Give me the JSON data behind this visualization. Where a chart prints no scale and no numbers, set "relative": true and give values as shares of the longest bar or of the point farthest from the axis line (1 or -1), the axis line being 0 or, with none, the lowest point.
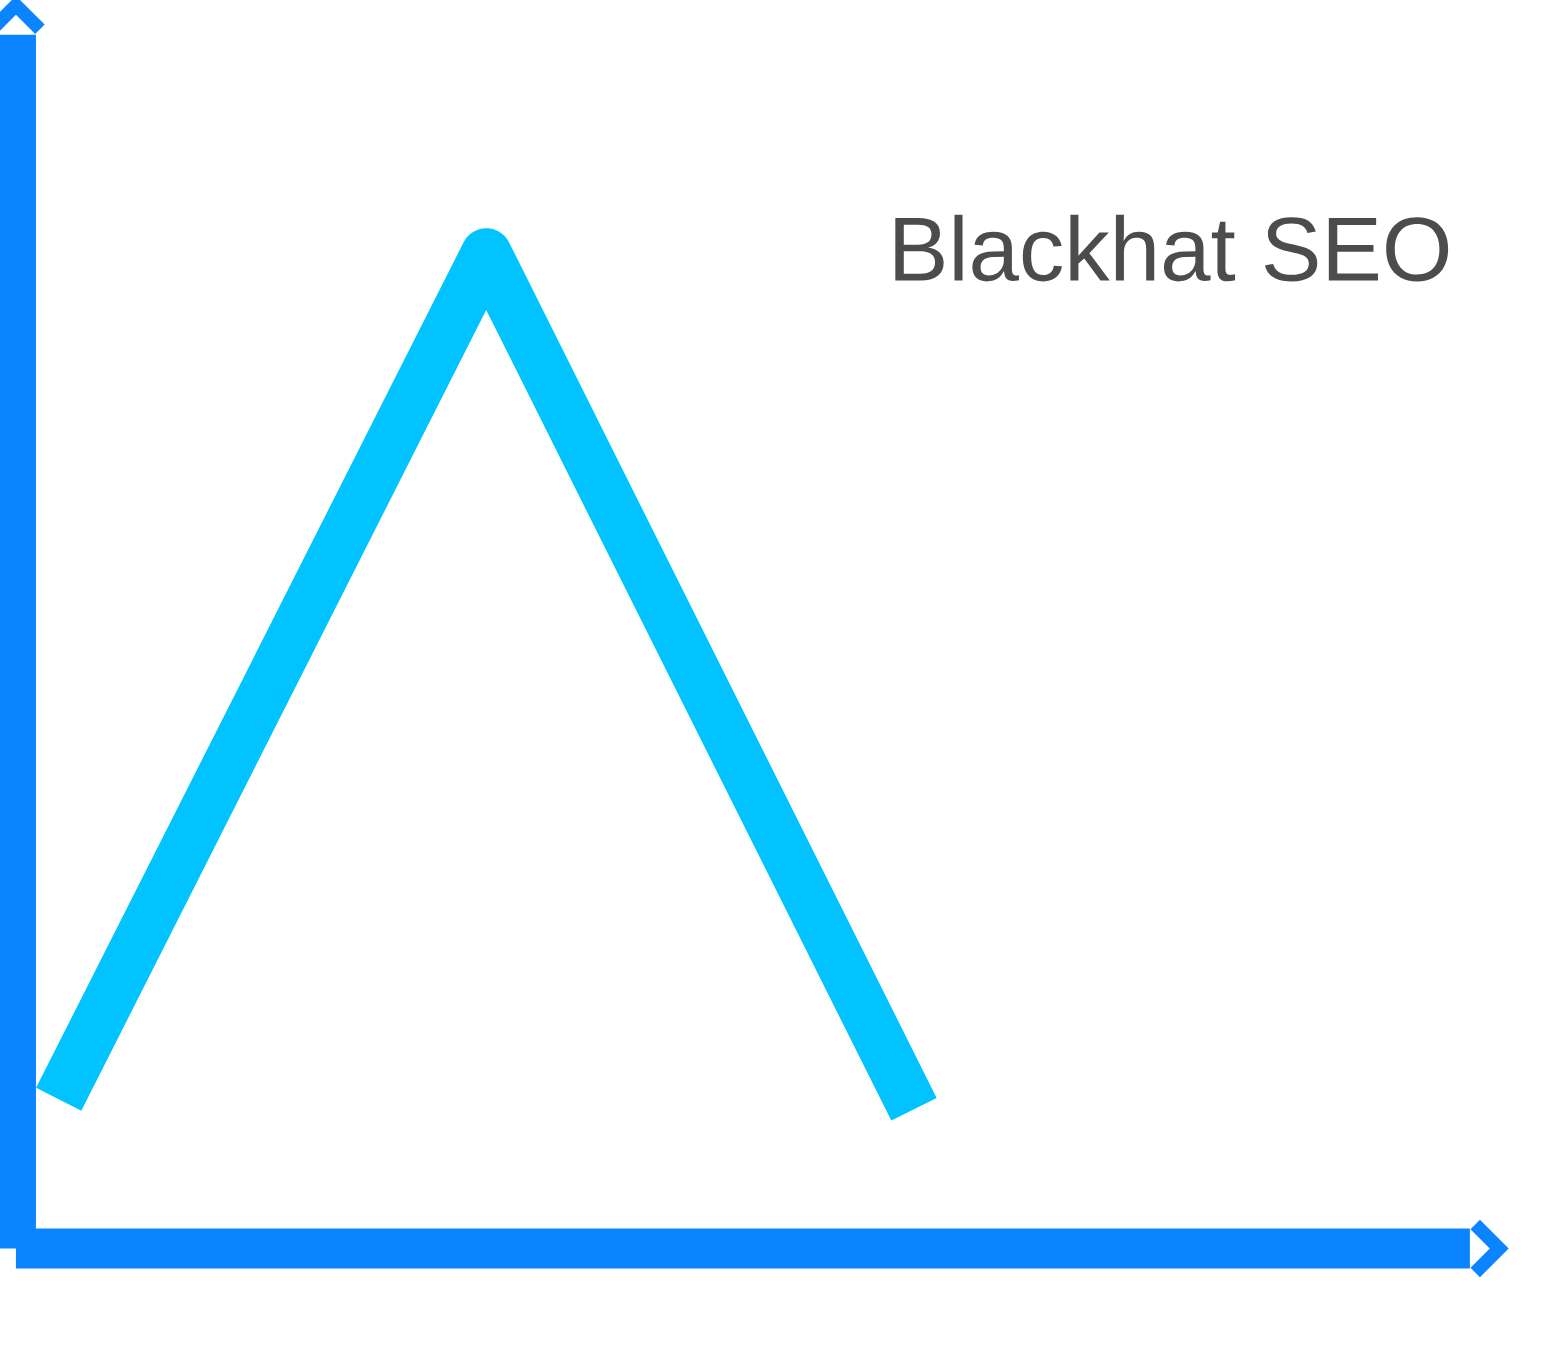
{
  "chart_data": {
    "type": "line",
    "title": "Blackhat SEO",
    "categories": [
      null,
      null,
      null
    ],
    "values": [
      0.15,
      1,
      0.14
    ],
    "color": "#00c3ff",
    "relative": true
  }
}
